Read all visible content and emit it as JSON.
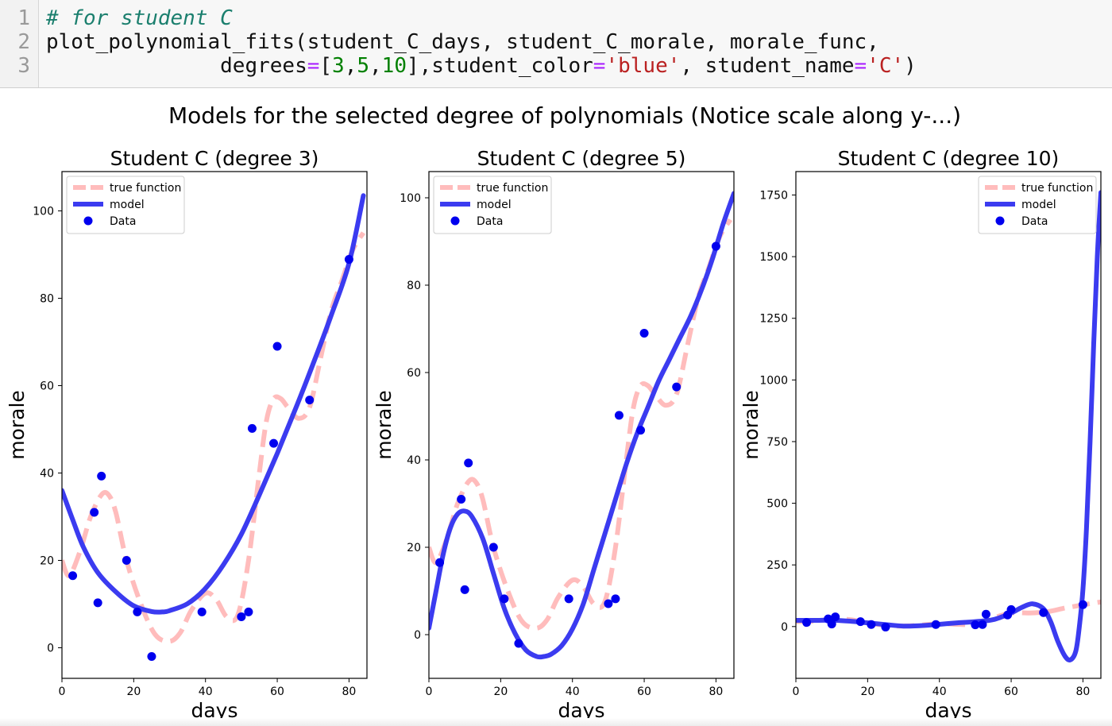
{
  "code": {
    "line_numbers": [
      "1",
      "2",
      "3"
    ],
    "line1_comment": "# for student C",
    "line2_text": "plot_polynomial_fits(student_C_days, student_C_morale, morale_func,",
    "line3_a": "              degrees",
    "line3_eq1": "=",
    "line3_b": "[",
    "line3_n1": "3",
    "line3_c1": ",",
    "line3_n2": "5",
    "line3_c2": ",",
    "line3_n3": "10",
    "line3_d": "],student_color",
    "line3_eq2": "=",
    "line3_s1": "'blue'",
    "line3_e": ", student_name",
    "line3_eq3": "=",
    "line3_s2": "'C'",
    "line3_f": ")"
  },
  "figure": {
    "suptitle": "Models for the selected degree of polynomials (Notice scale along y-...)"
  },
  "colors": {
    "model": "#3b3bf0",
    "data": "#0000ee",
    "true_function": "#ffbcbc"
  },
  "chart_data": [
    {
      "type": "line",
      "title": "Student C (degree 3)",
      "xlabel": "days",
      "ylabel": "morale",
      "xlim": [
        0,
        85
      ],
      "ylim": [
        -7,
        109
      ],
      "xticks": [
        0,
        20,
        40,
        60,
        80
      ],
      "yticks": [
        0,
        20,
        40,
        60,
        80,
        100
      ],
      "legend_position": "top-left",
      "legend": [
        "true function",
        "model",
        "Data"
      ],
      "scatter": {
        "name": "Data",
        "x": [
          3,
          9,
          10,
          11,
          18,
          21,
          25,
          39,
          50,
          52,
          53,
          59,
          60,
          69,
          80
        ],
        "y": [
          16.5,
          31,
          10.3,
          39.3,
          20,
          8.2,
          -2,
          8.2,
          7.1,
          8.2,
          50.2,
          46.8,
          69,
          56.7,
          88.9
        ]
      },
      "model": {
        "name": "model",
        "x": [
          0,
          3,
          6,
          10,
          15,
          20,
          25,
          28,
          30,
          35,
          40,
          45,
          50,
          55,
          60,
          65,
          70,
          75,
          80,
          84
        ],
        "y": [
          36,
          29.3,
          23,
          17.2,
          12.8,
          9.6,
          8.3,
          8.2,
          8.5,
          10.1,
          13.6,
          19,
          26,
          35,
          44.5,
          54.5,
          65,
          76,
          88,
          103.5
        ]
      },
      "true_function": {
        "name": "true function",
        "x": [
          0,
          2,
          5,
          8,
          11,
          13,
          15,
          18,
          22,
          26,
          30,
          33,
          36,
          40,
          43,
          46,
          49,
          52,
          55,
          57,
          59,
          61,
          63,
          66,
          69,
          72,
          75,
          78,
          81,
          84
        ],
        "y": [
          20,
          16.5,
          22,
          30,
          35,
          35,
          31,
          20,
          10,
          3,
          1.5,
          3.5,
          8.5,
          12.5,
          11,
          7,
          7.5,
          20,
          40,
          52,
          57,
          57,
          55,
          52.5,
          55,
          66,
          77,
          84,
          91,
          95
        ]
      }
    },
    {
      "type": "line",
      "title": "Student C (degree 5)",
      "xlabel": "days",
      "ylabel": "morale",
      "xlim": [
        0,
        85
      ],
      "ylim": [
        -10,
        106
      ],
      "xticks": [
        0,
        20,
        40,
        60,
        80
      ],
      "yticks": [
        0,
        20,
        40,
        60,
        80,
        100
      ],
      "legend_position": "top-left",
      "legend": [
        "true function",
        "model",
        "Data"
      ],
      "scatter": {
        "name": "Data",
        "x": [
          3,
          9,
          10,
          11,
          18,
          21,
          25,
          39,
          50,
          52,
          53,
          59,
          60,
          69,
          80
        ],
        "y": [
          16.5,
          31,
          10.3,
          39.3,
          20,
          8.2,
          -2,
          8.2,
          7.1,
          8.2,
          50.2,
          46.8,
          69,
          56.7,
          88.9
        ]
      },
      "model": {
        "name": "model",
        "x": [
          0,
          2,
          4,
          6,
          8,
          10,
          12,
          15,
          18,
          21,
          24,
          27,
          30,
          32,
          34,
          37,
          40,
          43,
          46,
          49,
          52,
          55,
          58,
          61,
          64,
          67,
          70,
          73,
          76,
          79,
          82,
          85
        ],
        "y": [
          1.5,
          10,
          18.5,
          24.5,
          27.6,
          28.3,
          27,
          22,
          14,
          6,
          0.3,
          -3.5,
          -5,
          -5,
          -4.5,
          -2.5,
          1.3,
          7,
          15,
          23,
          31,
          39,
          46,
          52,
          58,
          63,
          68,
          73,
          79,
          86,
          94,
          101
        ]
      },
      "true_function": {
        "name": "true function",
        "x": [
          0,
          2,
          5,
          8,
          11,
          13,
          15,
          18,
          22,
          26,
          30,
          33,
          36,
          40,
          43,
          46,
          49,
          52,
          55,
          57,
          59,
          61,
          63,
          66,
          69,
          72,
          75,
          78,
          81,
          84
        ],
        "y": [
          20,
          16.5,
          22,
          30,
          35,
          35,
          31,
          20,
          10,
          3,
          1.5,
          3.5,
          8.5,
          12.5,
          11,
          7,
          7.5,
          20,
          40,
          52,
          57,
          57,
          55,
          52.5,
          55,
          66,
          77,
          84,
          91,
          95
        ]
      }
    },
    {
      "type": "line",
      "title": "Student C (degree 10)",
      "xlabel": "days",
      "ylabel": "morale",
      "xlim": [
        0,
        85
      ],
      "ylim": [
        -210,
        1845
      ],
      "xticks": [
        0,
        20,
        40,
        60,
        80
      ],
      "yticks": [
        0,
        250,
        500,
        750,
        1000,
        1250,
        1500,
        1750
      ],
      "legend_position": "top-right",
      "legend": [
        "true function",
        "model",
        "Data"
      ],
      "scatter": {
        "name": "Data",
        "x": [
          3,
          9,
          10,
          11,
          18,
          21,
          25,
          39,
          50,
          52,
          53,
          59,
          60,
          69,
          80
        ],
        "y": [
          16.5,
          31,
          10.3,
          39.3,
          20,
          8.2,
          -2,
          8.2,
          7.1,
          8.2,
          50.2,
          46.8,
          69,
          56.7,
          88.9
        ]
      },
      "model": {
        "name": "model",
        "x": [
          0,
          5,
          10,
          15,
          20,
          25,
          30,
          35,
          40,
          45,
          50,
          55,
          60,
          63,
          66,
          69,
          71,
          73,
          75,
          76.5,
          78,
          79,
          80,
          81,
          82,
          83,
          84,
          85
        ],
        "y": [
          25,
          25,
          26,
          22,
          15,
          8,
          2,
          4,
          9,
          15,
          20,
          28,
          55,
          78,
          92,
          72,
          20,
          -60,
          -120,
          -135,
          -100,
          0,
          150,
          400,
          750,
          1150,
          1500,
          1760
        ]
      },
      "true_function": {
        "name": "true function",
        "x": [
          0,
          5,
          10,
          15,
          20,
          25,
          30,
          35,
          40,
          45,
          50,
          55,
          60,
          65,
          70,
          75,
          80,
          85
        ],
        "y": [
          20,
          22,
          30,
          28,
          15,
          5,
          2,
          6,
          12,
          9,
          10,
          35,
          55,
          55,
          60,
          75,
          88,
          100
        ]
      }
    }
  ]
}
